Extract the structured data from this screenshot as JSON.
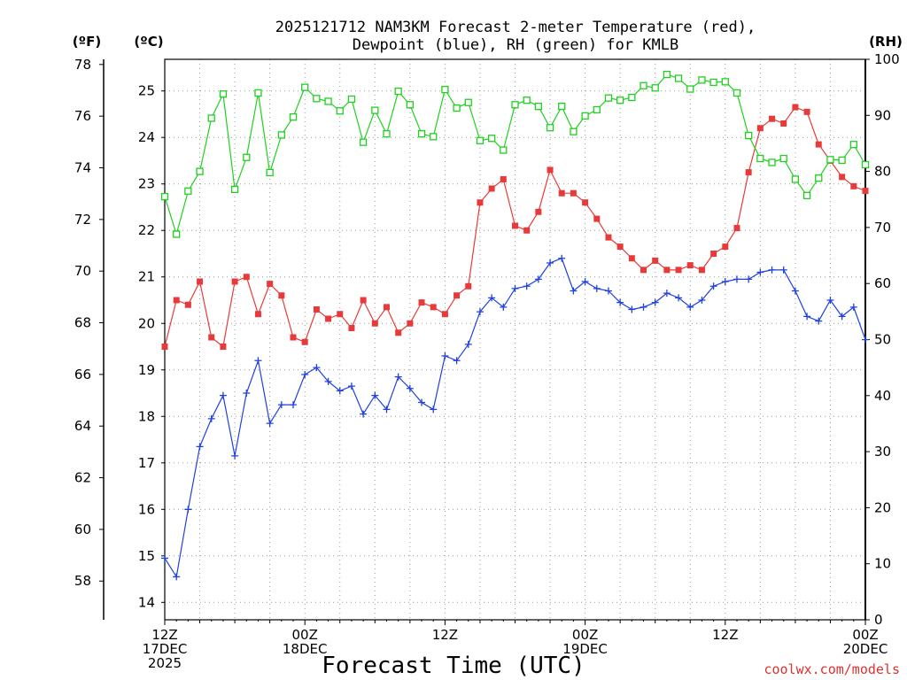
{
  "header": {
    "title_line1": "2025121712 NAM3KM Forecast 2-meter Temperature (red),",
    "title_line2": "Dewpoint (blue), RH (green) for KMLB",
    "unit_f": "(ºF)",
    "unit_c": "(ºC)",
    "unit_rh": "(RH)"
  },
  "footer": {
    "xlabel": "Forecast Time (UTC)",
    "credit": "coolwx.com/models"
  },
  "colors": {
    "temperature": "#e83a3a",
    "dewpoint": "#2040e0",
    "rh": "#20d020"
  },
  "chart_data": {
    "type": "line",
    "x_start": "2025-12-17 12Z",
    "x_step_hours": 1,
    "xlim_hours": [
      0,
      60
    ],
    "x_ticks": [
      {
        "hour": 0,
        "lines": [
          "12Z",
          "17DEC",
          "2025"
        ]
      },
      {
        "hour": 12,
        "lines": [
          "00Z",
          "18DEC"
        ]
      },
      {
        "hour": 24,
        "lines": [
          "12Z"
        ]
      },
      {
        "hour": 36,
        "lines": [
          "00Z",
          "19DEC"
        ]
      },
      {
        "hour": 48,
        "lines": [
          "12Z"
        ]
      },
      {
        "hour": 60,
        "lines": [
          "00Z",
          "20DEC"
        ]
      }
    ],
    "y_left_c": {
      "ticks": [
        14,
        15,
        16,
        17,
        18,
        19,
        20,
        21,
        22,
        23,
        24,
        25
      ],
      "range": [
        13.625,
        25.68
      ]
    },
    "y_far_left_f": {
      "ticks": [
        58,
        60,
        62,
        64,
        66,
        68,
        70,
        72,
        74,
        76,
        78
      ],
      "range": [
        56.5,
        78.2
      ]
    },
    "y_right_rh": {
      "ticks": [
        0,
        10,
        20,
        30,
        40,
        50,
        60,
        70,
        80,
        90,
        100
      ],
      "range": [
        0,
        100
      ]
    },
    "grid": true,
    "series": [
      {
        "name": "Temperature",
        "units": "C",
        "marker": "filled-square",
        "values": [
          19.5,
          20.5,
          20.4,
          20.9,
          19.7,
          19.5,
          20.9,
          21.0,
          20.2,
          20.85,
          20.6,
          19.7,
          19.6,
          20.3,
          20.1,
          20.2,
          19.9,
          20.5,
          20.0,
          20.35,
          19.8,
          20.0,
          20.45,
          20.35,
          20.2,
          20.6,
          20.8,
          22.6,
          22.9,
          23.1,
          22.1,
          22.0,
          22.4,
          23.3,
          22.8,
          22.8,
          22.6,
          22.25,
          21.85,
          21.65,
          21.4,
          21.15,
          21.35,
          21.15,
          21.15,
          21.25,
          21.15,
          21.5,
          21.65,
          22.05,
          23.25,
          24.2,
          24.4,
          24.3,
          24.65,
          24.55,
          23.85,
          23.5,
          23.15,
          22.95,
          22.85
        ]
      },
      {
        "name": "Dewpoint",
        "units": "C",
        "marker": "plus",
        "values": [
          14.95,
          14.55,
          16.0,
          17.35,
          17.95,
          18.45,
          17.15,
          18.5,
          19.2,
          17.85,
          18.25,
          18.25,
          18.9,
          19.05,
          18.75,
          18.55,
          18.65,
          18.05,
          18.45,
          18.15,
          18.85,
          18.6,
          18.3,
          18.15,
          19.3,
          19.2,
          19.55,
          20.25,
          20.55,
          20.35,
          20.75,
          20.8,
          20.95,
          21.3,
          21.4,
          20.7,
          20.9,
          20.75,
          20.7,
          20.45,
          20.3,
          20.35,
          20.45,
          20.65,
          20.55,
          20.35,
          20.5,
          20.8,
          20.9,
          20.95,
          20.95,
          21.1,
          21.15,
          21.15,
          20.7,
          20.15,
          20.05,
          20.5,
          20.15,
          20.35,
          19.65
        ]
      },
      {
        "name": "RH",
        "units": "%",
        "marker": "open-square",
        "values": [
          75.5,
          68.8,
          76.5,
          80.0,
          89.5,
          93.8,
          76.8,
          82.5,
          94.0,
          79.8,
          86.5,
          89.7,
          95.0,
          93.0,
          92.5,
          90.8,
          92.9,
          85.2,
          90.9,
          86.7,
          94.3,
          91.9,
          86.7,
          86.2,
          94.6,
          91.3,
          92.3,
          85.5,
          85.9,
          83.8,
          91.9,
          92.7,
          91.6,
          87.8,
          91.6,
          87.1,
          89.9,
          91.0,
          93.1,
          92.7,
          93.2,
          95.3,
          94.9,
          97.3,
          96.6,
          94.7,
          96.3,
          95.9,
          96.0,
          94.0,
          86.4,
          82.3,
          81.6,
          82.3,
          78.6,
          75.7,
          78.8,
          82.1,
          82.0,
          84.8,
          81.2
        ]
      }
    ]
  }
}
